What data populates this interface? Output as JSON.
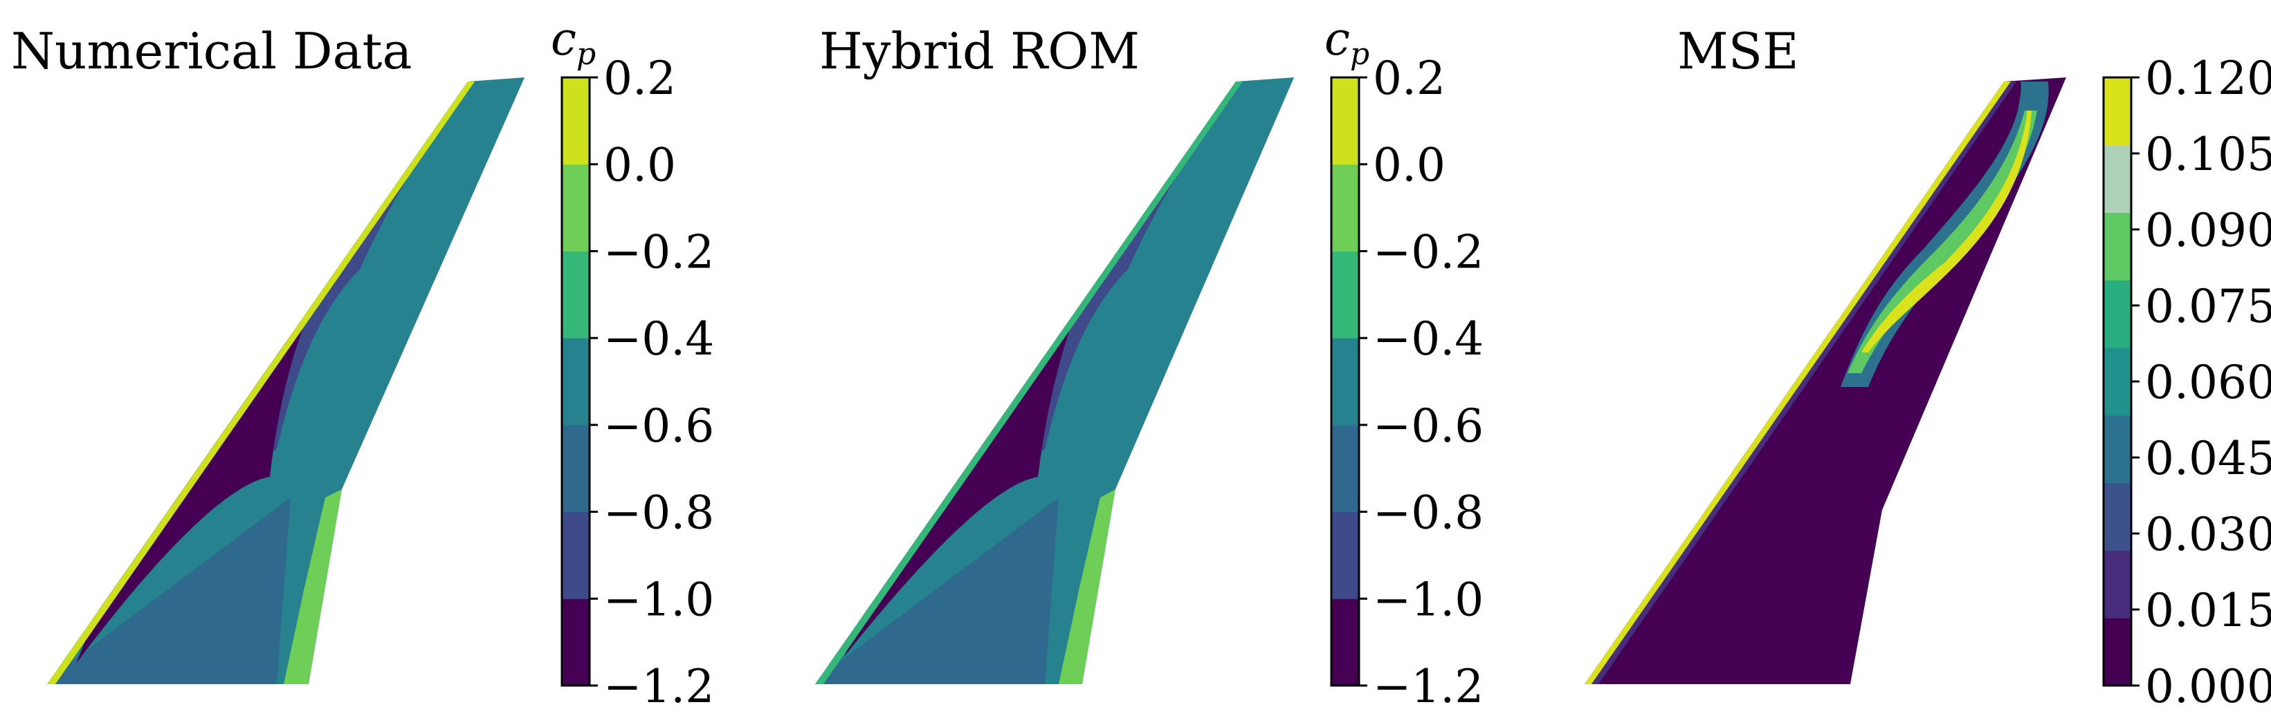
{
  "panels": [
    {
      "title": "Numerical Data",
      "colorbar_label_main": "c",
      "colorbar_label_sub": "p",
      "colorbar_ticks": [
        "0.2",
        "0.0",
        "−0.2",
        "−0.4",
        "−0.6",
        "−0.8",
        "−1.0",
        "−1.2"
      ]
    },
    {
      "title": "Hybrid ROM",
      "colorbar_label_main": "c",
      "colorbar_label_sub": "p",
      "colorbar_ticks": [
        "0.2",
        "0.0",
        "−0.2",
        "−0.4",
        "−0.6",
        "−0.8",
        "−1.0",
        "−1.2"
      ]
    },
    {
      "title": "MSE",
      "colorbar_label_main": "",
      "colorbar_label_sub": "",
      "colorbar_ticks": [
        "0.120",
        "0.105",
        "0.090",
        "0.075",
        "0.060",
        "0.045",
        "0.030",
        "0.015",
        "0.000"
      ]
    }
  ],
  "chart_data": [
    {
      "type": "heatmap",
      "title": "Numerical Data",
      "colorbar_label": "c_p",
      "colorbar_range": [
        -1.2,
        0.2
      ],
      "colorbar_levels": [
        -1.2,
        -1.0,
        -0.8,
        -0.6,
        -0.4,
        -0.2,
        0.0,
        0.2
      ],
      "colormap": "viridis",
      "level_colors": [
        "#440154",
        "#3e4a89",
        "#31688e",
        "#26828e",
        "#35b779",
        "#6ece58",
        "#cde11d"
      ]
    },
    {
      "type": "heatmap",
      "title": "Hybrid ROM",
      "colorbar_label": "c_p",
      "colorbar_range": [
        -1.2,
        0.2
      ],
      "colorbar_levels": [
        -1.2,
        -1.0,
        -0.8,
        -0.6,
        -0.4,
        -0.2,
        0.0,
        0.2
      ],
      "colormap": "viridis",
      "level_colors": [
        "#440154",
        "#3e4a89",
        "#31688e",
        "#26828e",
        "#35b779",
        "#6ece58",
        "#cde11d"
      ]
    },
    {
      "type": "heatmap",
      "title": "MSE",
      "colorbar_range": [
        0.0,
        0.12
      ],
      "colorbar_levels": [
        0.0,
        0.015,
        0.03,
        0.045,
        0.06,
        0.075,
        0.09,
        0.105,
        0.12
      ],
      "colormap": "viridis",
      "level_colors": [
        "#440154",
        "#472d7b",
        "#3b528b",
        "#2c728e",
        "#21918c",
        "#28ae80",
        "#5ec962",
        "#add0b6",
        "#d9e21a"
      ]
    }
  ]
}
